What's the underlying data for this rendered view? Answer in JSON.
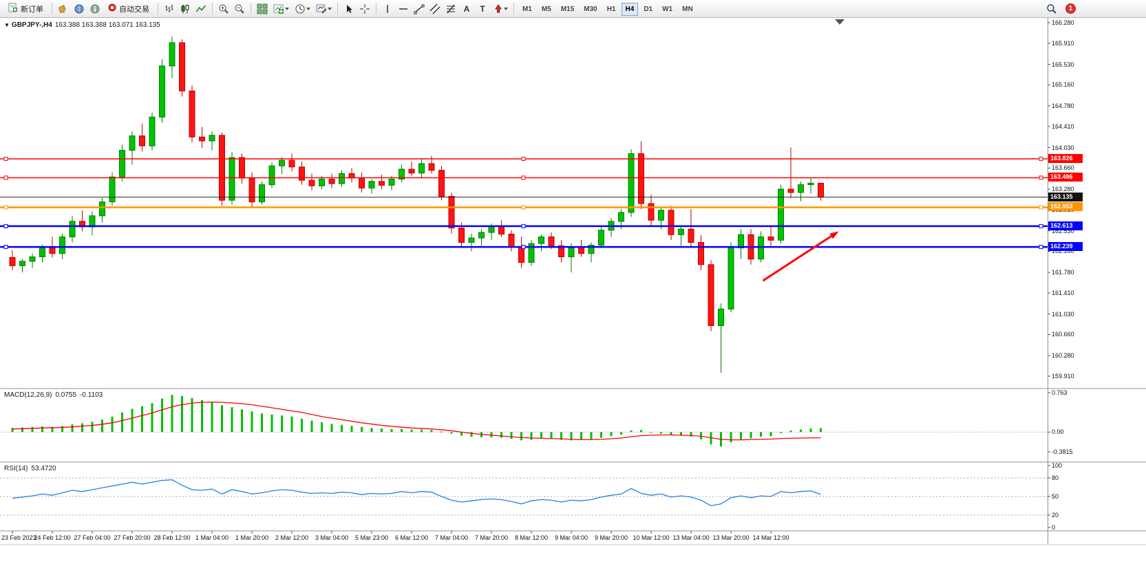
{
  "window": {
    "badge_count": "1"
  },
  "toolbar": {
    "new_order": "新订单",
    "auto_trading": "自动交易",
    "timeframes": [
      "M1",
      "M5",
      "M15",
      "M30",
      "H1",
      "H4",
      "D1",
      "W1",
      "MN"
    ],
    "active_timeframe": "H4",
    "icon_names": [
      "horn-icon",
      "market-watch-icon",
      "data-window-icon",
      "bar-chart-icon",
      "candlestick-chart-icon",
      "line-chart-icon",
      "zoom-in-icon",
      "zoom-out-icon",
      "tile-windows-icon",
      "indicators-icon",
      "periods-icon",
      "templates-icon",
      "cursor-icon",
      "crosshair-icon",
      "vertical-line-icon",
      "horizontal-line-icon",
      "trendline-icon",
      "channel-icon",
      "fibonacci-icon",
      "text-icon",
      "text-label-icon",
      "arrows-icon",
      "search-icon",
      "notification-badge"
    ]
  },
  "chart_header": {
    "symbol_period": "GBPJPY-,H4",
    "ohlc": "163.388 163.388 163.071 163.135"
  },
  "macd_header": {
    "label": "MACD(12,26,9)",
    "main": "0.0755",
    "signal": "-0.1103"
  },
  "rsi_header": {
    "label": "RSI(14)",
    "value": "53.4720"
  },
  "chart_data": {
    "type": "candlestick",
    "symbol": "GBPJPY",
    "period": "H4",
    "colors": {
      "bull": "#00C400",
      "bull_border": "#007A00",
      "bear": "#FF1414",
      "bear_border": "#BB0000",
      "macd_bar": "#00BE00",
      "macd_signal": "#FF0000",
      "rsi": "#2080E0"
    },
    "price_axis": {
      "max": 166.28,
      "min": 159.91,
      "labels": [
        "166.280",
        "165.910",
        "165.530",
        "165.160",
        "164.780",
        "164.410",
        "164.030",
        "163.660",
        "163.280",
        "162.910",
        "162.530",
        "162.160",
        "161.780",
        "161.410",
        "161.030",
        "160.660",
        "160.280",
        "159.910"
      ]
    },
    "current_price": 163.135,
    "current_price_label": "163.135",
    "hlines": [
      {
        "price": 163.826,
        "label": "163.826",
        "color": "#FF0000",
        "width": 1.5
      },
      {
        "price": 163.486,
        "label": "163.486",
        "color": "#FF0000",
        "width": 1.5
      },
      {
        "price": 162.953,
        "label": "162.953",
        "color": "#FF9500",
        "width": 2.5
      },
      {
        "price": 162.613,
        "label": "162.613",
        "color": "#0000FF",
        "width": 2.5
      },
      {
        "price": 162.239,
        "label": "162.239",
        "color": "#0000FF",
        "width": 2.5
      }
    ],
    "arrow": {
      "from": {
        "bar": 75.2,
        "price": 161.63
      },
      "to": {
        "bar": 82.8,
        "price": 162.52
      },
      "color": "#FF0000",
      "width": 3
    },
    "candles": [
      [
        162.05,
        162.18,
        161.82,
        161.9
      ],
      [
        161.9,
        162.02,
        161.78,
        161.98
      ],
      [
        161.98,
        162.12,
        161.86,
        162.06
      ],
      [
        162.06,
        162.28,
        161.96,
        162.22
      ],
      [
        162.22,
        162.42,
        162.05,
        162.12
      ],
      [
        162.12,
        162.48,
        162.02,
        162.42
      ],
      [
        162.42,
        162.8,
        162.32,
        162.7
      ],
      [
        162.7,
        162.9,
        162.52,
        162.6
      ],
      [
        162.6,
        162.88,
        162.45,
        162.8
      ],
      [
        162.8,
        163.12,
        162.68,
        163.05
      ],
      [
        163.05,
        163.58,
        162.98,
        163.5
      ],
      [
        163.5,
        164.08,
        163.42,
        163.98
      ],
      [
        163.98,
        164.32,
        163.72,
        164.24
      ],
      [
        164.24,
        164.46,
        163.96,
        164.06
      ],
      [
        164.06,
        164.66,
        163.98,
        164.58
      ],
      [
        164.58,
        165.62,
        164.48,
        165.5
      ],
      [
        165.5,
        166.03,
        165.28,
        165.92
      ],
      [
        165.92,
        165.98,
        164.95,
        165.05
      ],
      [
        165.05,
        165.15,
        164.12,
        164.22
      ],
      [
        164.22,
        164.4,
        164.02,
        164.15
      ],
      [
        164.15,
        164.32,
        163.98,
        164.25
      ],
      [
        164.25,
        164.3,
        162.98,
        163.08
      ],
      [
        163.08,
        163.95,
        163.0,
        163.85
      ],
      [
        163.85,
        163.92,
        163.38,
        163.48
      ],
      [
        163.48,
        163.58,
        162.95,
        163.05
      ],
      [
        163.05,
        163.42,
        163.0,
        163.36
      ],
      [
        163.36,
        163.76,
        163.3,
        163.7
      ],
      [
        163.7,
        163.86,
        163.55,
        163.8
      ],
      [
        163.8,
        163.92,
        163.6,
        163.68
      ],
      [
        163.68,
        163.78,
        163.36,
        163.44
      ],
      [
        163.44,
        163.56,
        163.26,
        163.34
      ],
      [
        163.34,
        163.52,
        163.28,
        163.46
      ],
      [
        163.46,
        163.56,
        163.3,
        163.38
      ],
      [
        163.38,
        163.62,
        163.32,
        163.56
      ],
      [
        163.56,
        163.66,
        163.4,
        163.48
      ],
      [
        163.48,
        163.58,
        163.22,
        163.3
      ],
      [
        163.3,
        163.46,
        163.2,
        163.42
      ],
      [
        163.42,
        163.54,
        163.28,
        163.35
      ],
      [
        163.35,
        163.52,
        163.26,
        163.46
      ],
      [
        163.46,
        163.72,
        163.4,
        163.64
      ],
      [
        163.64,
        163.78,
        163.52,
        163.57
      ],
      [
        163.57,
        163.82,
        163.48,
        163.74
      ],
      [
        163.74,
        163.88,
        163.56,
        163.62
      ],
      [
        163.62,
        163.7,
        163.08,
        163.15
      ],
      [
        163.15,
        163.22,
        162.48,
        162.58
      ],
      [
        162.58,
        162.68,
        162.22,
        162.32
      ],
      [
        162.32,
        162.48,
        162.16,
        162.4
      ],
      [
        162.4,
        162.56,
        162.26,
        162.5
      ],
      [
        162.5,
        162.66,
        162.36,
        162.6
      ],
      [
        162.6,
        162.72,
        162.42,
        162.47
      ],
      [
        162.47,
        162.54,
        162.16,
        162.24
      ],
      [
        162.24,
        162.42,
        161.86,
        161.96
      ],
      [
        161.96,
        162.36,
        161.9,
        162.3
      ],
      [
        162.3,
        162.46,
        162.16,
        162.42
      ],
      [
        162.42,
        162.5,
        162.2,
        162.26
      ],
      [
        162.26,
        162.36,
        161.96,
        162.06
      ],
      [
        162.06,
        162.3,
        161.78,
        162.22
      ],
      [
        162.22,
        162.36,
        162.06,
        162.12
      ],
      [
        162.12,
        162.32,
        161.96,
        162.27
      ],
      [
        162.27,
        162.62,
        162.22,
        162.54
      ],
      [
        162.54,
        162.76,
        162.42,
        162.7
      ],
      [
        162.7,
        162.92,
        162.56,
        162.86
      ],
      [
        162.86,
        164.0,
        162.78,
        163.92
      ],
      [
        163.92,
        164.14,
        162.92,
        163.02
      ],
      [
        163.02,
        163.18,
        162.62,
        162.72
      ],
      [
        162.72,
        162.96,
        162.56,
        162.9
      ],
      [
        162.9,
        162.98,
        162.36,
        162.46
      ],
      [
        162.46,
        162.62,
        162.26,
        162.56
      ],
      [
        162.56,
        162.92,
        162.22,
        162.32
      ],
      [
        162.32,
        162.45,
        161.82,
        161.92
      ],
      [
        161.92,
        162.0,
        160.72,
        160.82
      ],
      [
        160.82,
        161.22,
        159.97,
        161.12
      ],
      [
        161.12,
        162.32,
        161.06,
        162.22
      ],
      [
        162.22,
        162.56,
        162.02,
        162.46
      ],
      [
        162.46,
        162.56,
        161.92,
        162.02
      ],
      [
        162.02,
        162.52,
        161.96,
        162.42
      ],
      [
        162.42,
        162.62,
        162.26,
        162.36
      ],
      [
        162.36,
        163.36,
        162.3,
        163.28
      ],
      [
        163.28,
        164.03,
        163.12,
        163.22
      ],
      [
        163.22,
        163.42,
        163.06,
        163.36
      ],
      [
        163.36,
        163.48,
        163.2,
        163.388
      ],
      [
        163.388,
        163.388,
        163.071,
        163.135
      ]
    ],
    "macd": {
      "axis_max": 0.763,
      "axis_min": -0.3815,
      "axis_labels": [
        "0.763",
        "0.00",
        "-0.3815"
      ],
      "histogram": [
        0.08,
        0.09,
        0.1,
        0.11,
        0.1,
        0.12,
        0.15,
        0.17,
        0.2,
        0.24,
        0.3,
        0.38,
        0.45,
        0.5,
        0.56,
        0.65,
        0.72,
        0.7,
        0.66,
        0.62,
        0.58,
        0.52,
        0.48,
        0.44,
        0.4,
        0.36,
        0.34,
        0.32,
        0.3,
        0.26,
        0.22,
        0.19,
        0.16,
        0.14,
        0.12,
        0.1,
        0.08,
        0.07,
        0.06,
        0.06,
        0.05,
        0.05,
        0.04,
        0.01,
        -0.03,
        -0.07,
        -0.09,
        -0.1,
        -0.1,
        -0.11,
        -0.13,
        -0.16,
        -0.15,
        -0.13,
        -0.13,
        -0.15,
        -0.16,
        -0.15,
        -0.14,
        -0.11,
        -0.08,
        -0.05,
        0.03,
        0.04,
        -0.01,
        -0.03,
        -0.06,
        -0.07,
        -0.09,
        -0.14,
        -0.24,
        -0.28,
        -0.2,
        -0.14,
        -0.12,
        -0.09,
        -0.08,
        -0.02,
        0.03,
        0.05,
        0.07,
        0.0755
      ],
      "signal": [
        0.06,
        0.065,
        0.07,
        0.08,
        0.085,
        0.09,
        0.1,
        0.115,
        0.13,
        0.15,
        0.18,
        0.22,
        0.27,
        0.32,
        0.37,
        0.43,
        0.49,
        0.53,
        0.56,
        0.575,
        0.58,
        0.575,
        0.565,
        0.55,
        0.53,
        0.5,
        0.47,
        0.44,
        0.41,
        0.38,
        0.34,
        0.3,
        0.27,
        0.24,
        0.21,
        0.18,
        0.155,
        0.13,
        0.11,
        0.095,
        0.08,
        0.07,
        0.06,
        0.045,
        0.025,
        0.0,
        -0.025,
        -0.045,
        -0.06,
        -0.075,
        -0.09,
        -0.105,
        -0.115,
        -0.12,
        -0.125,
        -0.13,
        -0.14,
        -0.145,
        -0.145,
        -0.14,
        -0.13,
        -0.115,
        -0.09,
        -0.07,
        -0.06,
        -0.055,
        -0.055,
        -0.06,
        -0.065,
        -0.08,
        -0.11,
        -0.14,
        -0.15,
        -0.15,
        -0.145,
        -0.14,
        -0.135,
        -0.125,
        -0.12,
        -0.115,
        -0.112,
        -0.1103
      ]
    },
    "rsi": {
      "axis_labels": [
        "100",
        "80",
        "50",
        "20",
        "0"
      ],
      "levels": [
        80,
        50,
        20
      ],
      "values": [
        47,
        49,
        51,
        54,
        52,
        56,
        60,
        58,
        61,
        64,
        67,
        70,
        73,
        70,
        73,
        76,
        77,
        68,
        61,
        60,
        62,
        54,
        61,
        58,
        54,
        56,
        59,
        61,
        60,
        57,
        55,
        56,
        55,
        57,
        56,
        53,
        55,
        54,
        55,
        58,
        56,
        58,
        57,
        50,
        44,
        41,
        43,
        45,
        46,
        45,
        42,
        38,
        43,
        45,
        44,
        41,
        44,
        43,
        45,
        49,
        52,
        54,
        63,
        55,
        52,
        54,
        49,
        51,
        49,
        44,
        35,
        38,
        48,
        51,
        48,
        51,
        50,
        58,
        56,
        58,
        59,
        53.47
      ]
    },
    "time_labels": [
      {
        "bar": 0,
        "label": "23 Feb 2023"
      },
      {
        "bar": 4,
        "label": "24 Feb 12:00"
      },
      {
        "bar": 8,
        "label": "27 Feb 04:00"
      },
      {
        "bar": 12,
        "label": "27 Feb 20:00"
      },
      {
        "bar": 16,
        "label": "28 Feb 12:00"
      },
      {
        "bar": 20,
        "label": "1 Mar 04:00"
      },
      {
        "bar": 24,
        "label": "1 Mar 20:00"
      },
      {
        "bar": 28,
        "label": "2 Mar 12:00"
      },
      {
        "bar": 32,
        "label": "3 Mar 04:00"
      },
      {
        "bar": 36,
        "label": "5 Mar 23:00"
      },
      {
        "bar": 40,
        "label": "6 Mar 12:00"
      },
      {
        "bar": 44,
        "label": "7 Mar 04:00"
      },
      {
        "bar": 48,
        "label": "7 Mar 20:00"
      },
      {
        "bar": 52,
        "label": "8 Mar 12:00"
      },
      {
        "bar": 56,
        "label": "9 Mar 04:00"
      },
      {
        "bar": 60,
        "label": "9 Mar 20:00"
      },
      {
        "bar": 64,
        "label": "10 Mar 12:00"
      },
      {
        "bar": 68,
        "label": "13 Mar 04:00"
      },
      {
        "bar": 72,
        "label": "13 Mar 20:00"
      },
      {
        "bar": 76,
        "label": "14 Mar 12:00"
      }
    ]
  }
}
